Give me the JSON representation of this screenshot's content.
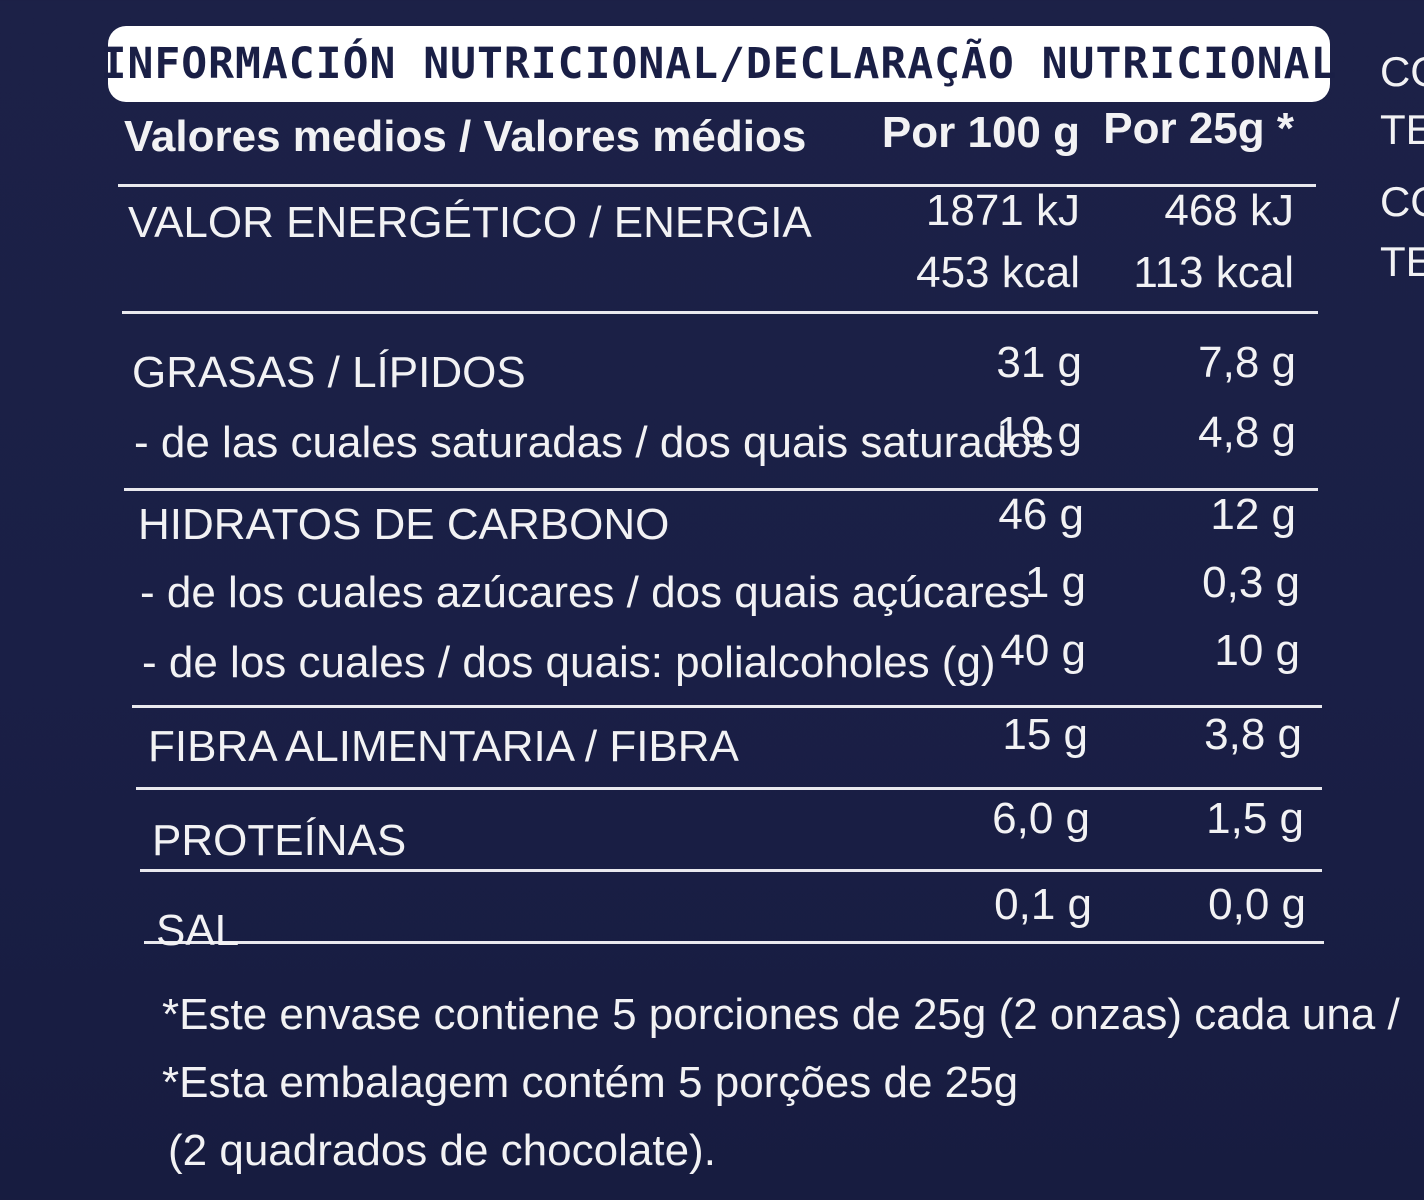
{
  "title": "INFORMACIÓN NUTRICIONAL/DECLARAÇÃO NUTRICIONAL",
  "side_fragments": [
    "CO",
    "TE",
    "CO",
    "TE"
  ],
  "header": {
    "label": "Valores medios / Valores médios",
    "col_100g": "Por 100 g",
    "col_25g": "Por 25g *"
  },
  "rows": [
    {
      "label": "VALOR ENERGÉTICO / ENERGIA",
      "per100": "1871 kJ",
      "per25": "468 kJ"
    },
    {
      "label": "",
      "per100": "453 kcal",
      "per25": "113 kcal"
    },
    {
      "label": "GRASAS / LÍPIDOS",
      "per100": "31 g",
      "per25": "7,8 g"
    },
    {
      "label": "- de las cuales saturadas / dos quais saturados",
      "per100": "19 g",
      "per25": "4,8 g"
    },
    {
      "label": "HIDRATOS DE CARBONO",
      "per100": "46 g",
      "per25": "12 g"
    },
    {
      "label": "-  de los cuales azúcares / dos quais açúcares",
      "per100": "1 g",
      "per25": "0,3 g"
    },
    {
      "label": "- de los cuales / dos quais: polialcoholes (g)",
      "per100": "40 g",
      "per25": "10 g"
    },
    {
      "label": "FIBRA ALIMENTARIA / FIBRA",
      "per100": "15 g",
      "per25": "3,8 g"
    },
    {
      "label": "PROTEÍNAS",
      "per100": "6,0 g",
      "per25": "1,5 g"
    },
    {
      "label": "SAL",
      "per100": "0,1 g",
      "per25": "0,0 g"
    }
  ],
  "footnote": [
    "*Este envase contiene 5 porciones de 25g (2 onzas) cada una /",
    "*Esta embalagem contém 5 porções de 25g",
    "(2 quadrados de chocolate)."
  ]
}
